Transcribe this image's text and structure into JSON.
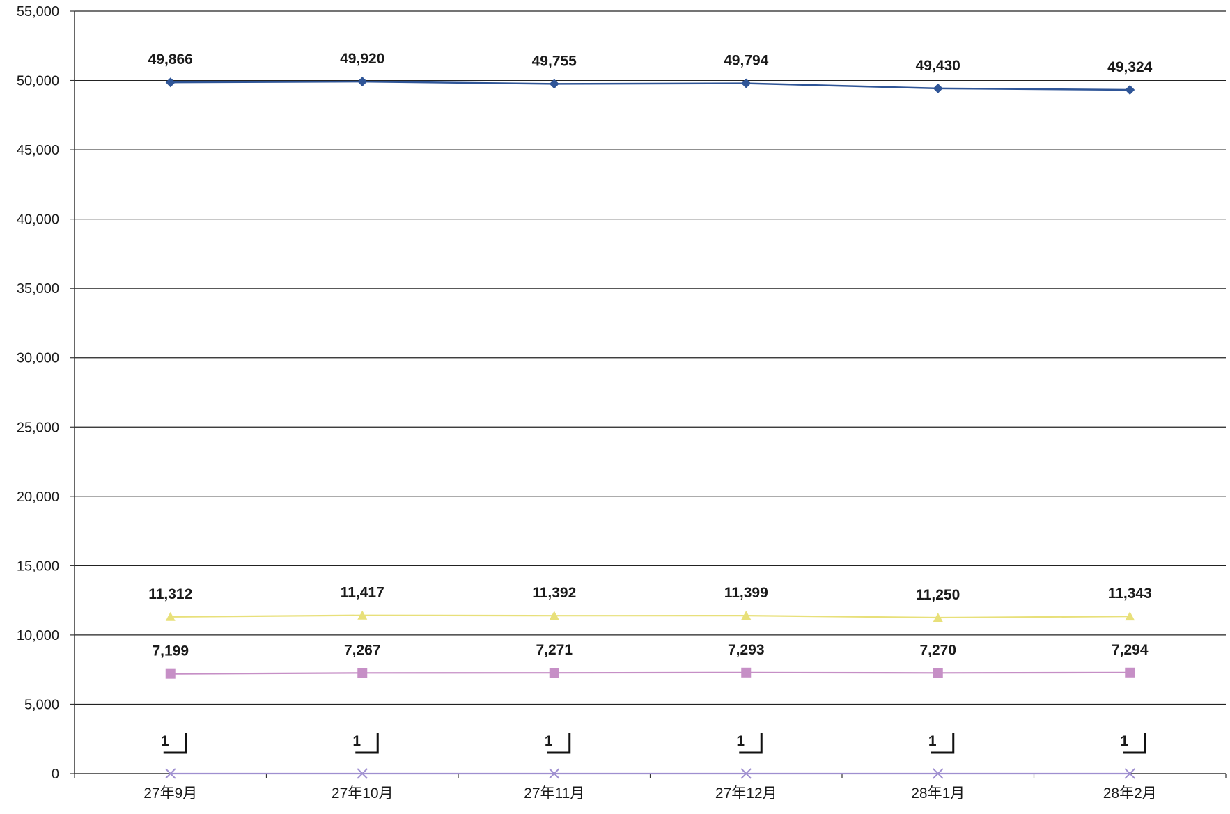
{
  "chart_data": {
    "type": "line",
    "title": "",
    "xlabel": "",
    "ylabel": "",
    "categories": [
      "27年9月",
      "27年10月",
      "27年11月",
      "27年12月",
      "28年1月",
      "28年2月"
    ],
    "ylim": [
      0,
      55000
    ],
    "yticks": [
      0,
      5000,
      10000,
      15000,
      20000,
      25000,
      30000,
      35000,
      40000,
      45000,
      50000,
      55000
    ],
    "ytick_labels": [
      "0",
      "5,000",
      "10,000",
      "15,000",
      "20,000",
      "25,000",
      "30,000",
      "35,000",
      "40,000",
      "45,000",
      "50,000",
      "55,000"
    ],
    "grid": true,
    "legend": "none",
    "series": [
      {
        "values": [
          49866,
          49920,
          49755,
          49794,
          49430,
          49324
        ],
        "labels": [
          "49,866",
          "49,920",
          "49,755",
          "49,794",
          "49,430",
          "49,324"
        ],
        "color": "#2f5597",
        "marker": "diamond"
      },
      {
        "values": [
          11312,
          11417,
          11392,
          11399,
          11250,
          11343
        ],
        "labels": [
          "11,312",
          "11,417",
          "11,392",
          "11,399",
          "11,250",
          "11,343"
        ],
        "color": "#e8e07a",
        "marker": "triangle"
      },
      {
        "values": [
          7199,
          7267,
          7271,
          7293,
          7270,
          7294
        ],
        "labels": [
          "7,199",
          "7,267",
          "7,271",
          "7,293",
          "7,270",
          "7,294"
        ],
        "color": "#c68fc6",
        "marker": "square"
      },
      {
        "values": [
          1,
          1,
          1,
          1,
          1,
          1
        ],
        "labels": [
          "1",
          "1",
          "1",
          "1",
          "1",
          "1"
        ],
        "color": "#9f8fd0",
        "marker": "x"
      }
    ]
  }
}
